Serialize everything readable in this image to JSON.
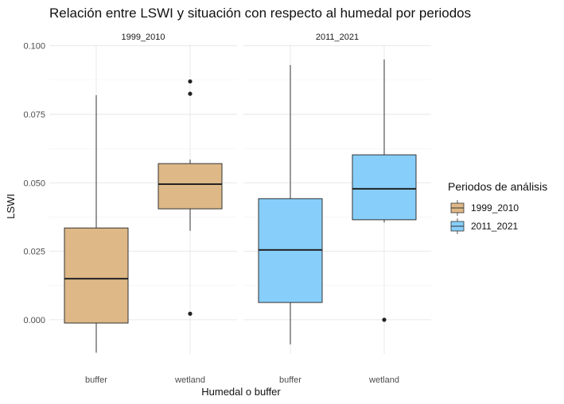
{
  "chart_data": {
    "type": "boxplot",
    "title": "Relación entre LSWI y situación con respecto al humedal por periodos",
    "xlabel": "Humedal o buffer",
    "ylabel": "LSWI",
    "ylim": [
      -0.0125,
      0.1005
    ],
    "yticks": [
      "0.000",
      "0.025",
      "0.050",
      "0.075",
      "0.100"
    ],
    "ytick_values": [
      0,
      0.025,
      0.05,
      0.075,
      0.1
    ],
    "categories": [
      "buffer",
      "wetland"
    ],
    "grid": true,
    "legend": {
      "title": "Periodos de análisis",
      "position": "right",
      "entries": [
        "1999_2010",
        "2011_2021"
      ]
    },
    "colors": {
      "1999_2010": "#DEB887",
      "2011_2021": "#87CEFA"
    },
    "facets": [
      {
        "label": "1999_2010",
        "boxes": [
          {
            "category": "buffer",
            "lower_whisker": -0.012,
            "q1": -0.0012,
            "median": 0.015,
            "q3": 0.0335,
            "upper_whisker": 0.082,
            "outliers": []
          },
          {
            "category": "wetland",
            "lower_whisker": 0.0325,
            "q1": 0.0405,
            "median": 0.0495,
            "q3": 0.057,
            "upper_whisker": 0.0585,
            "outliers": [
              0.0022,
              0.0825,
              0.087
            ]
          }
        ]
      },
      {
        "label": "2011_2021",
        "boxes": [
          {
            "category": "buffer",
            "lower_whisker": -0.009,
            "q1": 0.0063,
            "median": 0.0255,
            "q3": 0.0442,
            "upper_whisker": 0.093,
            "outliers": []
          },
          {
            "category": "wetland",
            "lower_whisker": 0.0355,
            "q1": 0.0365,
            "median": 0.0478,
            "q3": 0.0602,
            "upper_whisker": 0.095,
            "outliers": [
              0.0
            ]
          }
        ]
      }
    ]
  }
}
